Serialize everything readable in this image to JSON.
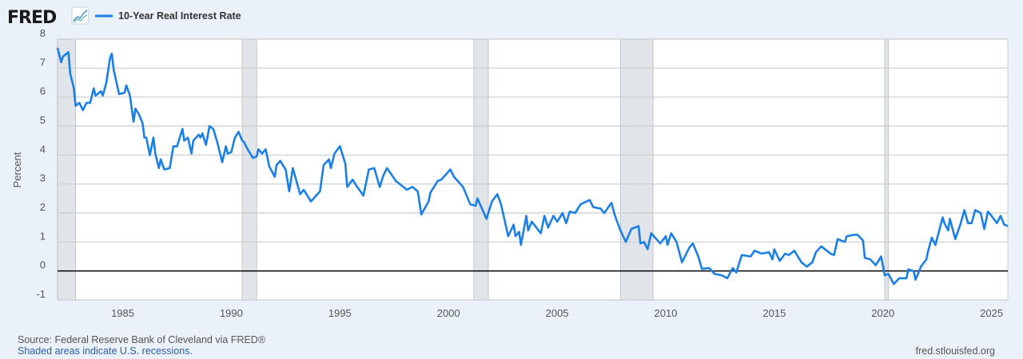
{
  "header": {
    "logo_text": "FRED",
    "chart_icon": "line-chart-icon",
    "legend_label": "10-Year Real Interest Rate"
  },
  "footer": {
    "source": "Source: Federal Reserve Bank of Cleveland via FRED®",
    "recession_note": "Shaded areas indicate U.S. recessions.",
    "site": "fred.stlouisfed.org"
  },
  "colors": {
    "background": "#eaf1f8",
    "plot_background": "#ffffff",
    "series": "#1a7fe6",
    "recession": "#e1e5ea",
    "grid": "#cccccc"
  },
  "chart_data": {
    "type": "line",
    "title": "",
    "xlabel": "",
    "ylabel": "Percent",
    "xlim": [
      "1982-01",
      "2025-10"
    ],
    "ylim": [
      -1,
      8
    ],
    "grid": true,
    "legend_placement": "top-left",
    "x_ticks": [
      "1985",
      "1990",
      "1995",
      "2000",
      "2005",
      "2010",
      "2015",
      "2020",
      "2025"
    ],
    "y_ticks": [
      "8",
      "7",
      "6",
      "5",
      "4",
      "3",
      "2",
      "1",
      "0",
      "-1"
    ],
    "recessions": [
      [
        "1981-07",
        "1982-11"
      ],
      [
        "1990-07",
        "1991-03"
      ],
      [
        "2001-03",
        "2001-11"
      ],
      [
        "2007-12",
        "2009-06"
      ],
      [
        "2020-02",
        "2020-04"
      ]
    ],
    "series": [
      {
        "name": "10-Year Real Interest Rate",
        "dates": [
          "1982-01",
          "1982-03",
          "1982-04",
          "1982-07",
          "1982-08",
          "1982-10",
          "1982-11",
          "1983-01",
          "1983-03",
          "1983-05",
          "1983-07",
          "1983-09",
          "1983-10",
          "1984-01",
          "1984-02",
          "1984-04",
          "1984-06",
          "1984-07",
          "1984-08",
          "1984-11",
          "1985-02",
          "1985-03",
          "1985-05",
          "1985-07",
          "1985-08",
          "1985-10",
          "1985-12",
          "1986-01",
          "1986-02",
          "1986-04",
          "1986-06",
          "1986-07",
          "1986-09",
          "1986-10",
          "1986-12",
          "1987-03",
          "1987-05",
          "1987-07",
          "1987-10",
          "1987-11",
          "1988-01",
          "1988-03",
          "1988-04",
          "1988-07",
          "1988-08",
          "1988-09",
          "1988-11",
          "1989-01",
          "1989-03",
          "1989-05",
          "1989-08",
          "1989-10",
          "1989-11",
          "1990-01",
          "1990-03",
          "1990-05",
          "1990-07",
          "1990-08",
          "1990-10",
          "1991-01",
          "1991-03",
          "1991-04",
          "1991-06",
          "1991-08",
          "1991-10",
          "1992-01",
          "1992-02",
          "1992-04",
          "1992-07",
          "1992-09",
          "1992-11",
          "1993-03",
          "1993-05",
          "1993-09",
          "1994-02",
          "1994-04",
          "1994-07",
          "1994-08",
          "1994-10",
          "1995-01",
          "1995-04",
          "1995-05",
          "1995-08",
          "1995-10",
          "1996-02",
          "1996-05",
          "1996-08",
          "1996-11",
          "1997-01",
          "1997-03",
          "1997-08",
          "1998-02",
          "1998-05",
          "1998-08",
          "1998-10",
          "1999-02",
          "1999-03",
          "1999-07",
          "1999-09",
          "2000-02",
          "2000-04",
          "2000-09",
          "2001-01",
          "2001-04",
          "2001-05",
          "2001-10",
          "2002-01",
          "2002-04",
          "2002-06",
          "2002-10",
          "2003-01",
          "2003-02",
          "2003-04",
          "2003-05",
          "2003-08",
          "2003-09",
          "2003-11",
          "2004-04",
          "2004-06",
          "2004-08",
          "2004-11",
          "2005-01",
          "2005-04",
          "2005-06",
          "2005-08",
          "2005-11",
          "2006-02",
          "2006-07",
          "2006-09",
          "2007-01",
          "2007-03",
          "2007-07",
          "2007-09",
          "2007-12",
          "2008-03",
          "2008-06",
          "2008-10",
          "2008-11",
          "2009-01",
          "2009-03",
          "2009-05",
          "2009-10",
          "2010-01",
          "2010-02",
          "2010-04",
          "2010-07",
          "2010-10",
          "2011-02",
          "2011-04",
          "2011-07",
          "2011-09",
          "2012-01",
          "2012-04",
          "2012-08",
          "2012-11",
          "2013-02",
          "2013-04",
          "2013-07",
          "2013-12",
          "2014-02",
          "2014-06",
          "2014-10",
          "2014-12",
          "2015-01",
          "2015-04",
          "2015-07",
          "2015-09",
          "2015-12",
          "2016-04",
          "2016-07",
          "2016-10",
          "2016-12",
          "2017-03",
          "2017-08",
          "2017-10",
          "2017-12",
          "2018-04",
          "2018-05",
          "2018-09",
          "2018-11",
          "2019-02",
          "2019-03",
          "2019-06",
          "2019-09",
          "2019-12",
          "2020-02",
          "2020-04",
          "2020-07",
          "2020-10",
          "2021-02",
          "2021-03",
          "2021-06",
          "2021-07",
          "2021-10",
          "2022-01",
          "2022-02",
          "2022-04",
          "2022-06",
          "2022-10",
          "2022-11",
          "2023-01",
          "2023-02",
          "2023-05",
          "2023-08",
          "2023-10",
          "2023-12",
          "2024-02",
          "2024-04",
          "2024-07",
          "2024-09",
          "2024-11",
          "2025-01",
          "2025-04",
          "2025-06",
          "2025-08",
          "2025-10"
        ],
        "values": [
          7.7,
          7.2,
          7.4,
          7.55,
          6.8,
          6.3,
          5.7,
          5.8,
          5.55,
          5.8,
          5.8,
          6.3,
          6.05,
          6.2,
          6.05,
          6.5,
          7.35,
          7.5,
          6.95,
          6.1,
          6.15,
          6.4,
          6.05,
          5.15,
          5.6,
          5.4,
          5.1,
          4.6,
          4.6,
          4.0,
          4.6,
          4.05,
          3.55,
          3.85,
          3.5,
          3.55,
          4.3,
          4.3,
          4.9,
          4.5,
          4.6,
          4.05,
          4.5,
          4.7,
          4.6,
          4.75,
          4.35,
          5.0,
          4.9,
          4.5,
          3.75,
          4.3,
          4.05,
          4.1,
          4.6,
          4.8,
          4.5,
          4.45,
          4.2,
          3.9,
          3.95,
          4.2,
          4.05,
          4.2,
          3.6,
          3.25,
          3.65,
          3.8,
          3.5,
          2.75,
          3.55,
          2.65,
          2.8,
          2.4,
          2.75,
          3.65,
          3.85,
          3.55,
          4.05,
          4.3,
          3.7,
          2.9,
          3.15,
          2.95,
          2.6,
          3.5,
          3.55,
          2.9,
          3.3,
          3.55,
          3.1,
          2.8,
          2.9,
          2.75,
          1.95,
          2.4,
          2.7,
          3.1,
          3.15,
          3.5,
          3.25,
          2.9,
          2.3,
          2.25,
          2.5,
          1.8,
          2.4,
          2.65,
          2.3,
          1.2,
          1.6,
          1.2,
          1.35,
          0.9,
          1.9,
          1.4,
          1.7,
          1.3,
          1.9,
          1.5,
          1.9,
          1.7,
          2.0,
          1.65,
          2.05,
          2.0,
          2.3,
          2.45,
          2.2,
          2.15,
          2.0,
          2.35,
          1.9,
          1.4,
          1.0,
          1.45,
          1.55,
          0.95,
          1.0,
          0.75,
          1.3,
          0.95,
          1.2,
          0.9,
          1.3,
          1.0,
          0.3,
          0.8,
          0.95,
          0.5,
          0.07,
          0.1,
          -0.1,
          -0.15,
          -0.25,
          0.1,
          -0.05,
          0.55,
          0.5,
          0.7,
          0.6,
          0.65,
          0.4,
          0.75,
          0.35,
          0.6,
          0.55,
          0.7,
          0.3,
          0.15,
          0.3,
          0.65,
          0.85,
          0.6,
          0.55,
          1.1,
          1.0,
          1.2,
          1.25,
          1.25,
          1.05,
          0.45,
          0.4,
          0.2,
          0.5,
          -0.15,
          -0.1,
          -0.45,
          -0.25,
          -0.25,
          0.05,
          0.0,
          -0.3,
          0.15,
          0.4,
          0.7,
          1.15,
          0.9,
          1.85,
          1.65,
          1.4,
          1.8,
          1.1,
          1.65,
          2.1,
          1.65,
          1.65,
          2.1,
          2.0,
          1.45,
          2.05,
          1.9,
          1.65,
          1.9,
          1.6,
          1.55
        ]
      }
    ]
  }
}
